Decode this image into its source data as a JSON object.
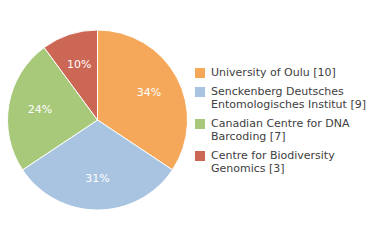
{
  "chart_data": {
    "type": "pie",
    "categories": [
      "University of Oulu [10]",
      "Senckenberg Deutsches\nEntomologisches Institut [9]",
      "Canadian Centre for DNA\nBarcoding [7]",
      "Centre for Biodiversity\nGenomics [3]"
    ],
    "values": [
      34,
      31,
      24,
      10
    ],
    "value_labels": [
      "34%",
      "31%",
      "24%",
      "10%"
    ],
    "colors": [
      "#f5a85a",
      "#a8c4e0",
      "#a8c87a",
      "#cc6655"
    ],
    "data_labels": true,
    "legend": "right"
  }
}
